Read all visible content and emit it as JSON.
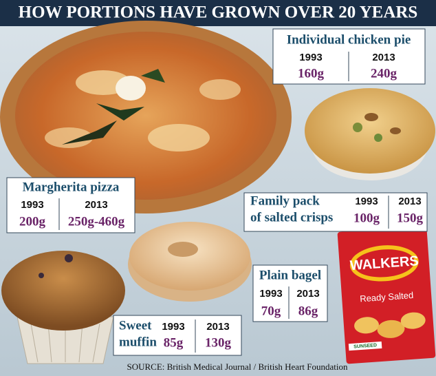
{
  "title": "HOW PORTIONS HAVE GROWN OVER 20 YEARS",
  "items": [
    {
      "name": [
        "Individual chicken pie"
      ],
      "years": [
        "1993",
        "2013"
      ],
      "values": [
        "160g",
        "240g"
      ]
    },
    {
      "name": [
        "Margherita pizza"
      ],
      "years": [
        "1993",
        "2013"
      ],
      "values": [
        "200g",
        "250g-460g"
      ]
    },
    {
      "name": [
        "Family pack",
        "of salted crisps"
      ],
      "years": [
        "1993",
        "2013"
      ],
      "values": [
        "100g",
        "150g"
      ]
    },
    {
      "name": [
        "Plain bagel"
      ],
      "years": [
        "1993",
        "2013"
      ],
      "values": [
        "70g",
        "86g"
      ]
    },
    {
      "name": [
        "Sweet",
        "muffin"
      ],
      "years": [
        "1993",
        "2013"
      ],
      "values": [
        "85g",
        "130g"
      ]
    }
  ],
  "packet": {
    "brand": "WALKERS",
    "flavour": "Ready Salted",
    "badge": "SUNSEED"
  },
  "source": "SOURCE: British Medical Journal / British Heart Foundation"
}
